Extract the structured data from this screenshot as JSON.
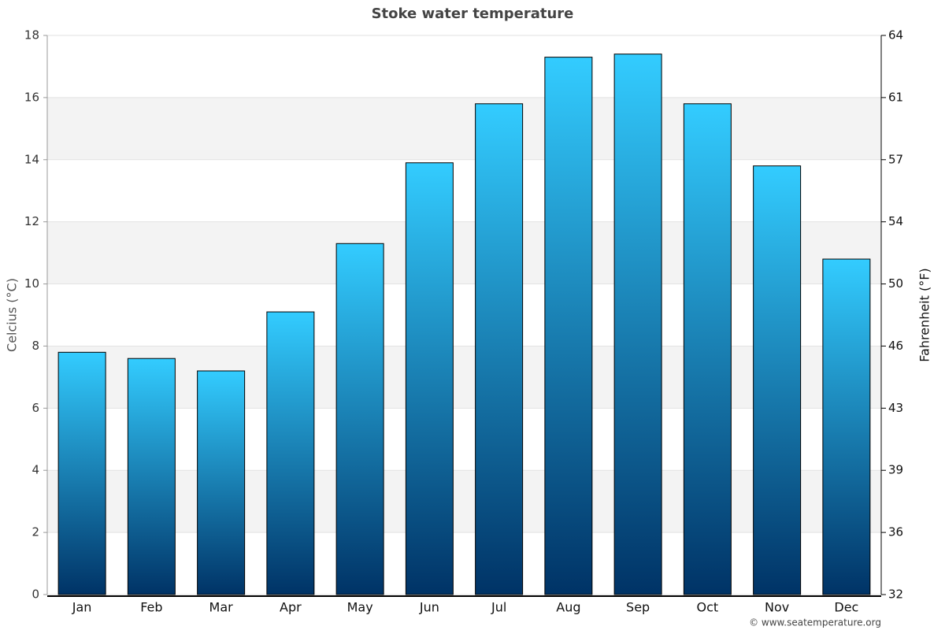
{
  "chart_data": {
    "type": "bar",
    "title": "Stoke water temperature",
    "y_label": "Celcius (°C)",
    "y2_label": "Fahrenheit (°F)",
    "credit": "© www.seatemperature.org",
    "categories": [
      "Jan",
      "Feb",
      "Mar",
      "Apr",
      "May",
      "Jun",
      "Jul",
      "Aug",
      "Sep",
      "Oct",
      "Nov",
      "Dec"
    ],
    "values": [
      7.8,
      7.6,
      7.2,
      9.1,
      11.3,
      13.9,
      15.8,
      17.3,
      17.4,
      15.8,
      13.8,
      10.8
    ],
    "color": [
      "#33ccff",
      "#003366"
    ],
    "ylim": [
      0,
      18
    ],
    "yticks": [
      0,
      2,
      4,
      6,
      8,
      10,
      12,
      14,
      16,
      18
    ],
    "y2lim": [
      32,
      64.4
    ],
    "y2ticks": [
      32,
      {
        "value": 35.6,
        "label": "36"
      },
      {
        "value": 39.2,
        "label": "39"
      },
      {
        "value": 42.8,
        "label": "43"
      },
      {
        "value": 46.4,
        "label": "46"
      },
      50,
      {
        "value": 53.6,
        "label": "54"
      },
      {
        "value": 57.2,
        "label": "57"
      },
      {
        "value": 60.8,
        "label": "61"
      },
      {
        "value": 64.4,
        "label": "64"
      }
    ],
    "grid": true
  }
}
